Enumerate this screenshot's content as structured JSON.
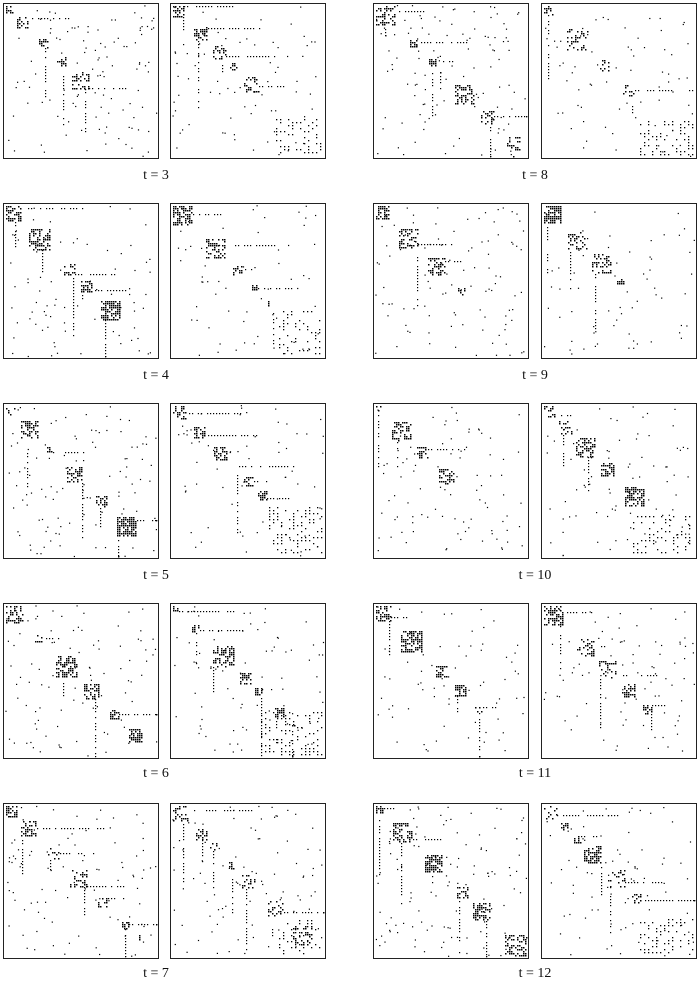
{
  "colors": {
    "dot": "#000000",
    "frame": "#222222",
    "background": "#ffffff"
  },
  "figure": {
    "rows": [
      {
        "label": "t = 3",
        "matrices": [
          {
            "name": "left"
          },
          {
            "name": "right"
          }
        ]
      },
      {
        "label": "t = 4",
        "matrices": [
          {
            "name": "left"
          },
          {
            "name": "right"
          }
        ]
      },
      {
        "label": "t = 5",
        "matrices": [
          {
            "name": "left"
          },
          {
            "name": "right"
          }
        ]
      },
      {
        "label": "t = 6",
        "matrices": [
          {
            "name": "left"
          },
          {
            "name": "right"
          }
        ]
      },
      {
        "label": "t = 7",
        "matrices": [
          {
            "name": "left"
          },
          {
            "name": "right"
          }
        ]
      },
      {
        "label": "t = 8",
        "matrices": [
          {
            "name": "left"
          },
          {
            "name": "right"
          }
        ]
      },
      {
        "label": "t = 9",
        "matrices": [
          {
            "name": "left"
          },
          {
            "name": "right"
          }
        ]
      },
      {
        "label": "t = 10",
        "matrices": [
          {
            "name": "left"
          },
          {
            "name": "right"
          }
        ]
      },
      {
        "label": "t = 11",
        "matrices": [
          {
            "name": "left"
          },
          {
            "name": "right"
          }
        ]
      },
      {
        "label": "t = 12",
        "matrices": [
          {
            "name": "left"
          },
          {
            "name": "right"
          }
        ]
      }
    ]
  }
}
